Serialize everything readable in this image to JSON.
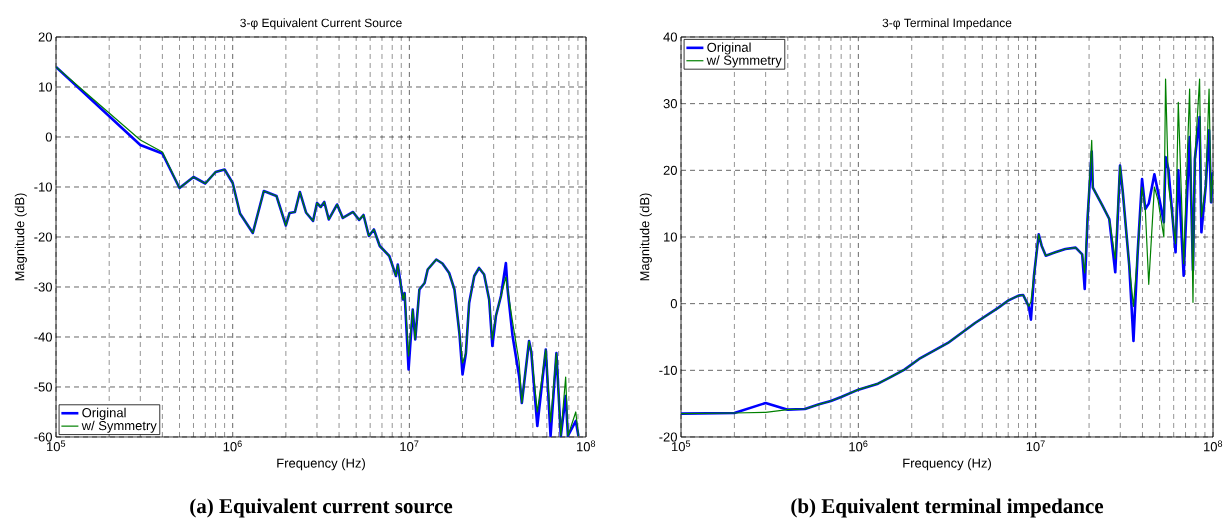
{
  "chart_data": [
    {
      "type": "line",
      "title": "3-φ Equivalent Current Source",
      "xlabel": "Frequency (Hz)",
      "ylabel": "Magnitude (dB)",
      "log": "x",
      "grid": true,
      "legend": "bottom left",
      "xlim": [
        100000.0,
        100000000.0
      ],
      "xticks": [
        {
          "value": 100000.0,
          "label": "10$^{5}$"
        },
        {
          "value": 1000000.0,
          "label": "10$^{6}$"
        },
        {
          "value": 10000000.0,
          "label": "10$^{7}$"
        },
        {
          "value": 100000000.0,
          "label": "10$^{8}$"
        }
      ],
      "ylim": [
        -60,
        20
      ],
      "yticks": [
        -60,
        -50,
        -40,
        -30,
        -20,
        -10,
        0,
        10,
        20
      ],
      "x": [
        100000.0,
        300000.0,
        400000.0,
        500000.0,
        600000.0,
        700000.0,
        800000.0,
        900000.0,
        1000000.0,
        1100000.0,
        1300000.0,
        1500000.0,
        1770000.0,
        2000000.0,
        2100000.0,
        2250000.0,
        2400000.0,
        2600000.0,
        2850000.0,
        3000000.0,
        3150000.0,
        3300000.0,
        3500000.0,
        3900000.0,
        4200000.0,
        4800000.0,
        5200000.0,
        5500000.0,
        5900000.0,
        6300000.0,
        6800000.0,
        7700000.0,
        8400000.0,
        8600000.0,
        9200000.0,
        9400000.0,
        9900000.0,
        10450000.0,
        10800000.0,
        11400000.0,
        12200000.0,
        12700000.0,
        14200000.0,
        15400000.0,
        16800000.0,
        18000000.0,
        19200000.0,
        20000000.0,
        20900000.0,
        21800000.0,
        23300000.0,
        24800000.0,
        26500000.0,
        28300000.0,
        29500000.0,
        30900000.0,
        33000000.0,
        35200000.0,
        36000000.0,
        38400000.0,
        41800000.0,
        43300000.0,
        47600000.0,
        49000000.0,
        53000000.0,
        59200000.0,
        63000000.0,
        68000000.0,
        72000000.0,
        76700000.0,
        79000000.0,
        87500000.0,
        90600000.0
      ],
      "series": [
        {
          "name": "Original",
          "color": "#0000ff",
          "values": [
            14,
            -1.6,
            -3.3,
            -10.2,
            -8,
            -9.3,
            -7,
            -6.5,
            -9.2,
            -15.3,
            -19.2,
            -10.8,
            -11.8,
            -17.7,
            -15.2,
            -15,
            -11,
            -15.1,
            -16.8,
            -13.2,
            -14,
            -13,
            -16.5,
            -13.5,
            -16.2,
            -15,
            -16.6,
            -15.6,
            -19.8,
            -18.5,
            -21.8,
            -23.8,
            -27.8,
            -25.5,
            -32.5,
            -31.2,
            -46.5,
            -34.5,
            -40.5,
            -30.5,
            -29.2,
            -26.5,
            -24.5,
            -25.3,
            -27.2,
            -30.5,
            -39.2,
            -47.5,
            -43.2,
            -33.2,
            -27.8,
            -26.2,
            -27.5,
            -32.5,
            -41.8,
            -35.8,
            -31.8,
            -25.2,
            -30.5,
            -39.8,
            -47.8,
            -53.2,
            -40.8,
            -43,
            -57.8,
            -42.5,
            -59.8,
            -43.2,
            -59.8,
            -51.8,
            -59.8,
            -56.8,
            -59.8
          ]
        },
        {
          "name": "w/ Symmetry",
          "color": "#008000",
          "values": [
            14,
            -0.6,
            -3.0,
            -10.2,
            -8,
            -9.3,
            -7,
            -6.5,
            -9.2,
            -15.3,
            -19.2,
            -10.8,
            -11.8,
            -17.7,
            -15.2,
            -15,
            -11,
            -15.1,
            -16.8,
            -13.2,
            -14,
            -13,
            -16.5,
            -13.5,
            -16.2,
            -15,
            -16.6,
            -15.6,
            -19.8,
            -18.5,
            -21.8,
            -23.8,
            -27.8,
            -25.5,
            -32.5,
            -31.2,
            -43.8,
            -34.5,
            -40.5,
            -30.5,
            -29.2,
            -26.5,
            -24.5,
            -25.3,
            -27.2,
            -30.5,
            -39.2,
            -45.2,
            -43.2,
            -33.2,
            -27.8,
            -26.2,
            -27.5,
            -32.5,
            -40.5,
            -35.8,
            -31.8,
            -28,
            -30.5,
            -37,
            -45,
            -53.2,
            -40.8,
            -43,
            -55,
            -42.5,
            -57,
            -43.2,
            -59.8,
            -48,
            -59.8,
            -55,
            -59.8
          ]
        }
      ],
      "annotations": [
        "(a) Equivalent current source"
      ]
    },
    {
      "type": "line",
      "title": "3-φ Terminal Impedance",
      "xlabel": "Frequency (Hz)",
      "ylabel": "Magnitude (dB)",
      "log": "x",
      "grid": true,
      "legend": "top left",
      "xlim": [
        100000.0,
        100000000.0
      ],
      "xticks": [
        {
          "value": 100000.0,
          "label": "10$^{5}$"
        },
        {
          "value": 1000000.0,
          "label": "10$^{6}$"
        },
        {
          "value": 10000000.0,
          "label": "10$^{7}$"
        },
        {
          "value": 100000000.0,
          "label": "10$^{8}$"
        }
      ],
      "ylim": [
        -20,
        40
      ],
      "yticks": [
        -20,
        -10,
        0,
        10,
        20,
        30,
        40
      ],
      "x": [
        100000.0,
        200000.0,
        300000.0,
        400000.0,
        500000.0,
        600000.0,
        700000.0,
        800000.0,
        1000000.0,
        1290000.0,
        1500000.0,
        1820000.0,
        2200000.0,
        3200000.0,
        4550000.0,
        6170000.0,
        7030000.0,
        8000000.0,
        8500000.0,
        9140000.0,
        9400000.0,
        9780000.0,
        10400000.0,
        10800000.0,
        11400000.0,
        12900000.0,
        14700000.0,
        16800000.0,
        18300000.0,
        18900000.0,
        19600000.0,
        20700000.0,
        21000000.0,
        23800000.0,
        26000000.0,
        28100000.0,
        29900000.0,
        31000000.0,
        33700000.0,
        35600000.0,
        37600000.0,
        39800000.0,
        41500000.0,
        43400000.0,
        46700000.0,
        49000000.0,
        52800000.0,
        54000000.0,
        56000000.0,
        61500000.0,
        63700000.0,
        68300000.0,
        73800000.0,
        77100000.0,
        79000000.0,
        84000000.0,
        86000000.0,
        91000000.0,
        95000000.0,
        97500000.0,
        100000000.0
      ],
      "series": [
        {
          "name": "Original",
          "color": "#0000ff",
          "values": [
            -16.5,
            -16.4,
            -14.9,
            -15.9,
            -15.8,
            -15.1,
            -14.6,
            -14.0,
            -12.9,
            -12.0,
            -11.1,
            -9.9,
            -8.3,
            -5.9,
            -2.9,
            -0.6,
            0.5,
            1.2,
            1.3,
            -0.4,
            -2.4,
            4.2,
            10.4,
            8.7,
            7.2,
            7.7,
            8.2,
            8.4,
            7.4,
            2.2,
            12.7,
            22.8,
            17.4,
            14.7,
            12.7,
            4.7,
            20.7,
            16.7,
            5.7,
            -5.6,
            7.7,
            18.7,
            14.2,
            15,
            19.4,
            16.7,
            12.2,
            22,
            20.2,
            7.7,
            20,
            4.2,
            25,
            5,
            21.7,
            28,
            10.7,
            17.7,
            26,
            15.2,
            19.7
          ]
        },
        {
          "name": "w/ Symmetry",
          "color": "#008000",
          "values": [
            -16.5,
            -16.4,
            -16.3,
            -15.9,
            -15.8,
            -15.1,
            -14.6,
            -14.0,
            -12.9,
            -12.0,
            -11.1,
            -9.9,
            -8.3,
            -5.9,
            -2.9,
            -0.6,
            0.5,
            1.2,
            1.3,
            -0.4,
            0.3,
            4.2,
            10.4,
            8.7,
            7.2,
            7.7,
            8.2,
            8.4,
            7.4,
            4.6,
            12.7,
            24.5,
            17.4,
            14.7,
            12.7,
            6.7,
            20.7,
            16.7,
            5.7,
            -0.4,
            7.7,
            17.5,
            14.2,
            2.9,
            17.5,
            15.5,
            10,
            33.7,
            18,
            9,
            30.2,
            6,
            32.2,
            0.2,
            21.7,
            33.7,
            13,
            17.7,
            32.2,
            15.2,
            19.7
          ]
        }
      ],
      "annotations": [
        "(b) Equivalent terminal impedance"
      ]
    }
  ]
}
